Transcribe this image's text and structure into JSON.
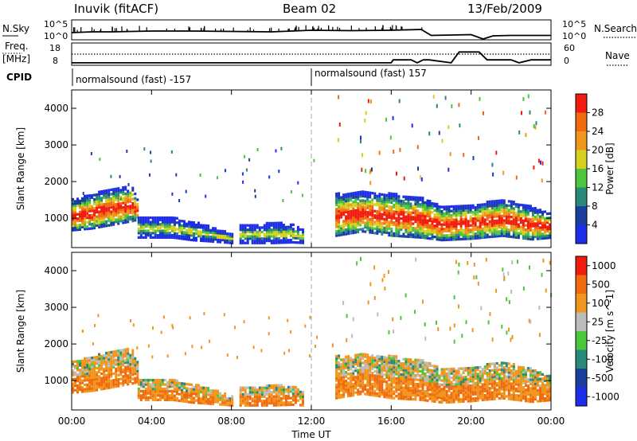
{
  "header": {
    "station": "Inuvik (fitACF)",
    "beam": "Beam 02",
    "date": "13/Feb/2009"
  },
  "colors": {
    "blue": "#1e2ee8",
    "navy": "#1a3f9e",
    "teal": "#2a8a7a",
    "green": "#4cc63a",
    "yellow": "#d8d020",
    "orange": "#f0961c",
    "dark_orange": "#f06a10",
    "red": "#f01c10",
    "grey": "#bcbcbc"
  },
  "chart_data": [
    {
      "type": "line",
      "name": "nsky-nsearch-panel",
      "left_axis_label": "N.Sky",
      "right_axis_label": "N.Search",
      "left_ticks": [
        "10^5",
        "10^0"
      ],
      "right_ticks": [
        "10^5",
        "10^0"
      ],
      "series": [
        {
          "name": "N.Sky",
          "style": "solid",
          "x": [
            0,
            1,
            2,
            3,
            4,
            6,
            8,
            10,
            12,
            14,
            16,
            17.5,
            18,
            19,
            20,
            20.6,
            21.1,
            22,
            24
          ],
          "y": [
            1.8,
            2.0,
            2.0,
            2.1,
            2.2,
            2.2,
            2.1,
            2.0,
            2.4,
            2.3,
            2.4,
            2.6,
            1.1,
            1.2,
            1.3,
            0.2,
            1.0,
            1.1,
            1.1
          ]
        }
      ]
    },
    {
      "type": "line",
      "name": "freq-nave-panel",
      "left_axis_label": "Freq. [MHz]",
      "right_axis_label": "Nave",
      "left_ticks": [
        "18",
        "8"
      ],
      "right_ticks": [
        "60",
        "0"
      ],
      "series": [
        {
          "name": "Freq",
          "style": "dotted",
          "x": [
            0,
            24
          ],
          "y": [
            13,
            13
          ]
        },
        {
          "name": "Nave",
          "style": "solid",
          "x": [
            0,
            16,
            16.1,
            17,
            17.3,
            17.6,
            17.9,
            19,
            19.4,
            20.4,
            20.8,
            22,
            22.4,
            23,
            24
          ],
          "y": [
            3,
            3,
            13,
            13,
            3,
            13,
            13,
            3,
            40,
            40,
            13,
            13,
            3,
            13,
            13
          ]
        }
      ]
    },
    {
      "type": "heatmap",
      "name": "power-panel",
      "ylabel": "Slant Range [km]",
      "yticks": [
        1000,
        2000,
        3000,
        4000
      ],
      "ylim": [
        200,
        4500
      ],
      "xlim": [
        0,
        24
      ],
      "colorbar": {
        "label": "Power [dB]",
        "ticks": [
          "4",
          "8",
          "12",
          "16",
          "20",
          "24",
          "28"
        ],
        "colors": [
          "#1e2ee8",
          "#1a3f9e",
          "#2a8a7a",
          "#4cc63a",
          "#d8d020",
          "#f0961c",
          "#f06a10",
          "#f01c10"
        ]
      },
      "cpid": {
        "label": "CPID",
        "segments": [
          {
            "x": 0,
            "text": "normalsound (fast) -157"
          },
          {
            "x": 12,
            "text": "normalsound (fast) 157"
          }
        ]
      },
      "echo_bands": [
        {
          "t": [
            0,
            1,
            2,
            3,
            3.3
          ],
          "r1": [
            650,
            700,
            800,
            900,
            950
          ],
          "r2": [
            1500,
            1650,
            1800,
            1850,
            1400
          ]
        },
        {
          "t": [
            3.3,
            5,
            6,
            7.3,
            8
          ],
          "r1": [
            450,
            450,
            380,
            330,
            300
          ],
          "r2": [
            1000,
            1000,
            900,
            700,
            550
          ]
        },
        {
          "t": [
            8.4,
            10,
            11,
            11.6
          ],
          "r1": [
            300,
            300,
            320,
            300
          ],
          "r2": [
            800,
            850,
            850,
            650
          ]
        },
        {
          "t": [
            13.2,
            14.5,
            16,
            17.5,
            18.5,
            20,
            21.5,
            23,
            24
          ],
          "r1": [
            500,
            620,
            500,
            450,
            380,
            420,
            500,
            400,
            450
          ],
          "r2": [
            1650,
            1700,
            1650,
            1550,
            1300,
            1350,
            1500,
            1300,
            1100
          ]
        }
      ]
    },
    {
      "type": "heatmap",
      "name": "velocity-panel",
      "ylabel": "Slant Range [km]",
      "yticks": [
        1000,
        2000,
        3000,
        4000
      ],
      "ylim": [
        200,
        4500
      ],
      "xlim": [
        0,
        24
      ],
      "colorbar": {
        "label": "Velocity [m s^-1]",
        "ticks": [
          "1000",
          "500",
          "100",
          "25",
          "-25",
          "-100",
          "-500",
          "-1000"
        ],
        "colors": [
          "#1e2ee8",
          "#1a3f9e",
          "#2a8a7a",
          "#4cc63a",
          "#bcbcbc",
          "#f0961c",
          "#f06a10",
          "#f01c10"
        ]
      },
      "xlabel": "Time UT",
      "xticks": [
        "00:00",
        "04:00",
        "08:00",
        "12:00",
        "16:00",
        "20:00",
        "00:00"
      ],
      "echo_bands": [
        {
          "t": [
            0,
            1,
            2,
            3,
            3.3
          ],
          "r1": [
            650,
            700,
            800,
            900,
            950
          ],
          "r2": [
            1500,
            1650,
            1800,
            1850,
            1400
          ]
        },
        {
          "t": [
            3.3,
            5,
            6,
            7.3,
            8
          ],
          "r1": [
            450,
            450,
            380,
            330,
            300
          ],
          "r2": [
            1000,
            1000,
            900,
            700,
            550
          ]
        },
        {
          "t": [
            8.4,
            10,
            11,
            11.6
          ],
          "r1": [
            300,
            300,
            320,
            300
          ],
          "r2": [
            800,
            850,
            850,
            650
          ]
        },
        {
          "t": [
            13.2,
            14.5,
            16,
            17.5,
            18.5,
            20,
            21.5,
            23,
            24
          ],
          "r1": [
            500,
            620,
            500,
            450,
            380,
            420,
            500,
            400,
            450
          ],
          "r2": [
            1650,
            1700,
            1650,
            1550,
            1300,
            1350,
            1500,
            1300,
            1100
          ]
        }
      ]
    }
  ]
}
